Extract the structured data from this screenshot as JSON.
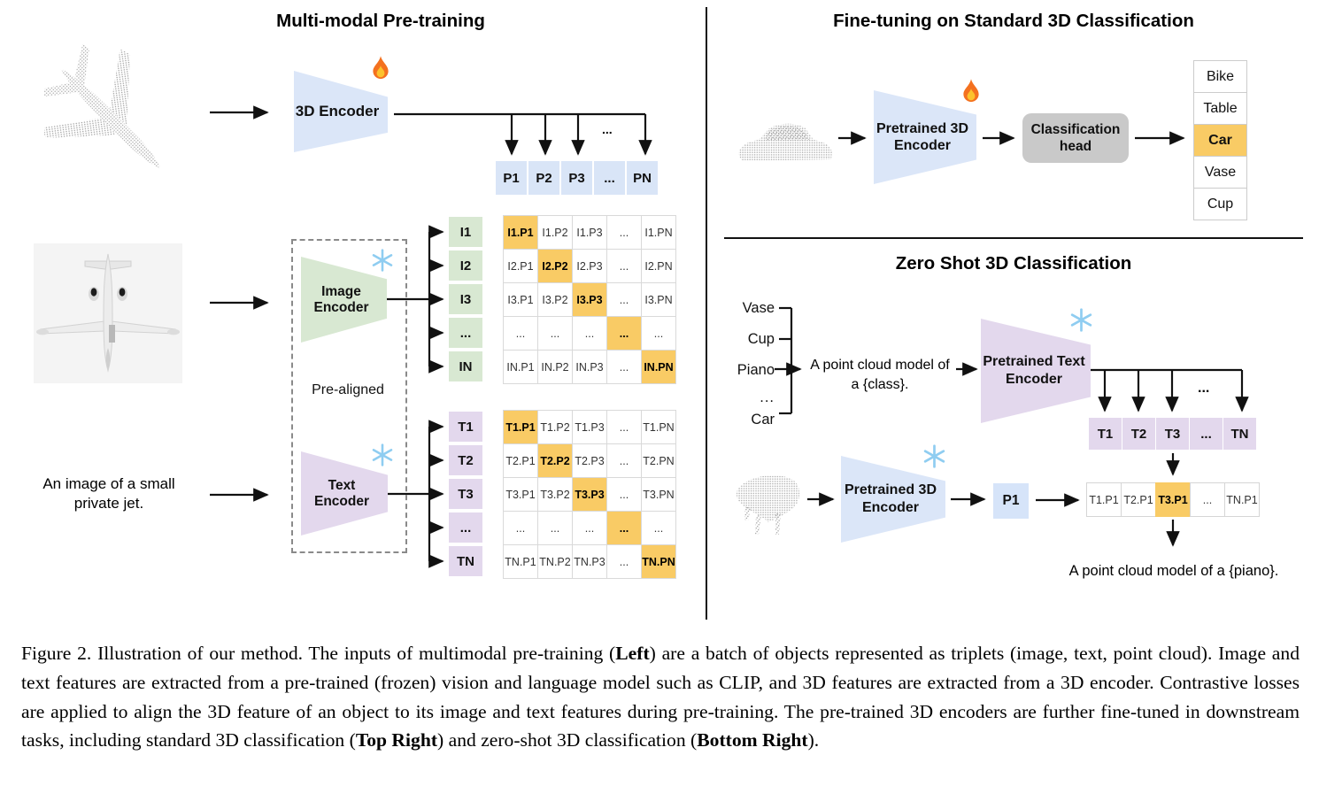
{
  "figure": {
    "left": {
      "title": "Multi-modal Pre-training",
      "encoder_3d_label": "3D Encoder",
      "image_encoder_label": "Image\nEncoder",
      "text_encoder_label": "Text\nEncoder",
      "pre_aligned_label": "Pre-aligned",
      "text_input": "An image of a small\nprivate jet.",
      "p_row": [
        "P1",
        "P2",
        "P3",
        "...",
        "PN"
      ],
      "i_labels": [
        "I1",
        "I2",
        "I3",
        "...",
        "IN"
      ],
      "t_labels": [
        "T1",
        "T2",
        "T3",
        "...",
        "TN"
      ],
      "i_matrix": [
        [
          "I1.P1",
          "I1.P2",
          "I1.P3",
          "...",
          "I1.PN"
        ],
        [
          "I2.P1",
          "I2.P2",
          "I2.P3",
          "...",
          "I2.PN"
        ],
        [
          "I3.P1",
          "I3.P2",
          "I3.P3",
          "...",
          "I3.PN"
        ],
        [
          "...",
          "...",
          "...",
          "...",
          "..."
        ],
        [
          "IN.P1",
          "IN.P2",
          "IN.P3",
          "...",
          "IN.PN"
        ]
      ],
      "t_matrix": [
        [
          "T1.P1",
          "T1.P2",
          "T1.P3",
          "...",
          "T1.PN"
        ],
        [
          "T2.P1",
          "T2.P2",
          "T2.P3",
          "...",
          "T2.PN"
        ],
        [
          "T3.P1",
          "T3.P2",
          "T3.P3",
          "...",
          "T3.PN"
        ],
        [
          "...",
          "...",
          "...",
          "...",
          "..."
        ],
        [
          "TN.P1",
          "TN.P2",
          "TN.P3",
          "...",
          "TN.PN"
        ]
      ],
      "bus_dots": "...",
      "point_cloud_name": "airplane point cloud",
      "image_name": "private jet image"
    },
    "top_right": {
      "title": "Fine-tuning on Standard 3D Classification",
      "encoder_label": "Pretrained 3D\nEncoder",
      "head_label": "Classification\nhead",
      "classes": [
        "Bike",
        "Table",
        "Car",
        "Vase",
        "Cup"
      ],
      "highlighted_class": "Car",
      "point_cloud_name": "car point cloud"
    },
    "bottom_right": {
      "title": "Zero Shot 3D Classification",
      "class_prompts": [
        "Vase",
        "Cup",
        "Piano",
        "...",
        "Car"
      ],
      "prompt_text": "A point cloud model of\na {class}.",
      "text_encoder_label": "Pretrained Text\nEncoder",
      "encoder_3d_label": "Pretrained 3D\nEncoder",
      "p1_label": "P1",
      "t_row": [
        "T1",
        "T2",
        "T3",
        "...",
        "TN"
      ],
      "bus_dots": "...",
      "sim_row": [
        "T1.P1",
        "T2.P1",
        "T3.P1",
        "...",
        "TN.P1"
      ],
      "sim_highlight": "T3.P1",
      "result_text": "A point cloud model of a {piano}.",
      "point_cloud_name": "piano point cloud"
    },
    "icons": {
      "trainable": "flame-icon",
      "frozen": "snowflake-icon"
    },
    "colors": {
      "blue": "#dbe6f8",
      "green": "#d8e8d2",
      "purple": "#e3d8ed",
      "highlight_orange": "#f9cb65",
      "head_gray": "#c9c9c9"
    }
  },
  "caption": {
    "segments": [
      {
        "text": "Figure 2. Illustration of our method. The inputs of multimodal pre-training (",
        "bold": false
      },
      {
        "text": "Left",
        "bold": true
      },
      {
        "text": ") are a batch of objects represented as triplets (image, text, point cloud).  Image and text features are extracted from a pre-trained (frozen) vision and language model such as CLIP, and 3D features are extracted from a 3D encoder.  Contrastive losses are applied to align the 3D feature of an object to its image and text features during pre-training.  The pre-trained 3D encoders are further fine-tuned in downstream tasks, including standard 3D classification (",
        "bold": false
      },
      {
        "text": "Top Right",
        "bold": true
      },
      {
        "text": ") and zero-shot 3D classification (",
        "bold": false
      },
      {
        "text": "Bottom Right",
        "bold": true
      },
      {
        "text": ").",
        "bold": false
      }
    ]
  }
}
